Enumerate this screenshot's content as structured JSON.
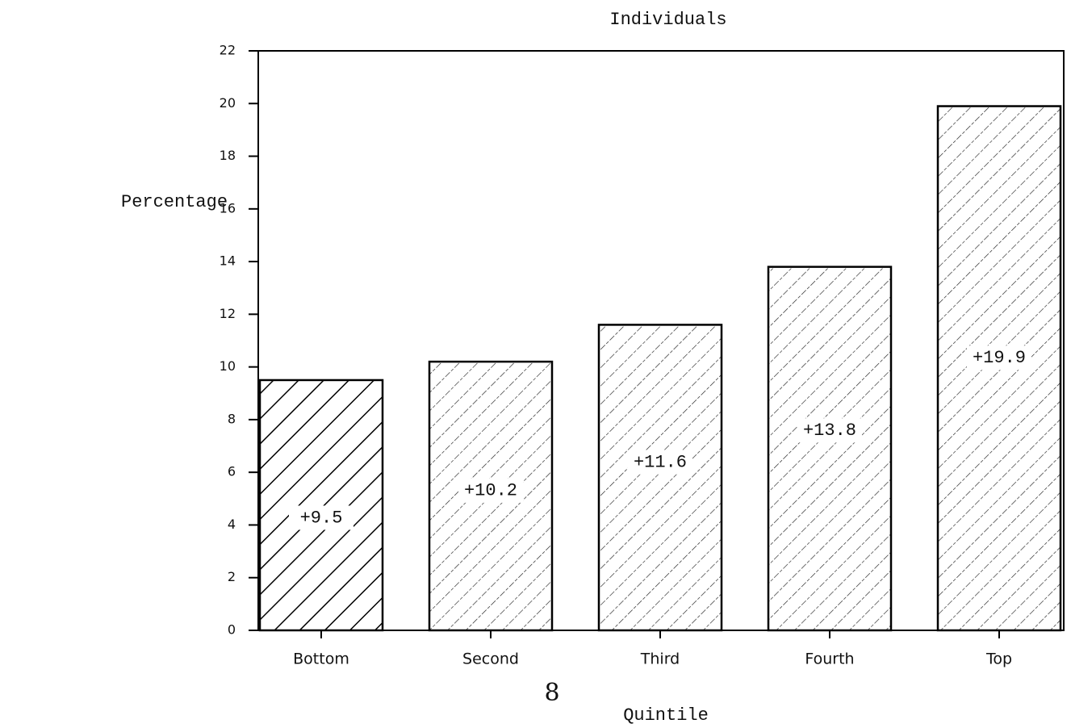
{
  "chart_data": {
    "type": "bar",
    "title": "Individuals",
    "y_label": "Percentage",
    "x_label": "Quintile",
    "annotations": [
      "8"
    ],
    "categories": [
      "Bottom",
      "Second",
      "Third",
      "Fourth",
      "Top"
    ],
    "values": [
      9.5,
      10.2,
      11.6,
      13.8,
      19.9
    ],
    "value_labels": [
      "+9.5",
      "+10.2",
      "+11.6",
      "+13.8",
      "+19.9"
    ],
    "color": "#000000",
    "ylim": [
      0,
      22
    ],
    "yticks": [
      0,
      2,
      4,
      6,
      8,
      10,
      12,
      14,
      16,
      18,
      20,
      22
    ],
    "grid": false
  }
}
